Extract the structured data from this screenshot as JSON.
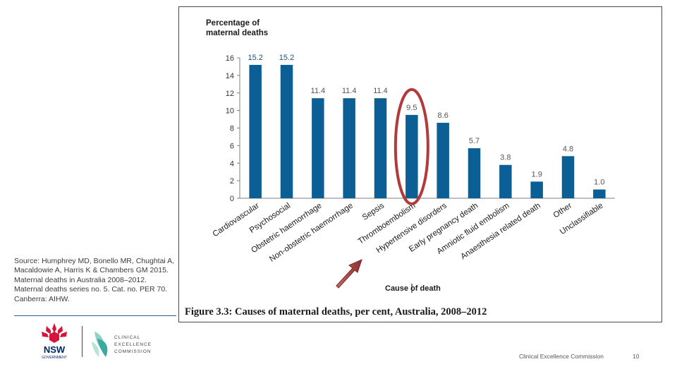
{
  "chart_data": {
    "type": "bar",
    "ylabel": "Percentage of\nmaternal deaths",
    "xlabel": "Cause of death",
    "ylim": [
      0,
      16
    ],
    "yticks": [
      "0",
      "2",
      "4",
      "6",
      "8",
      "10",
      "12",
      "14",
      "16"
    ],
    "categories": [
      "Cardiovascular",
      "Psychosocial",
      "Obstetric haemorrhage",
      "Non-obstetric haemorrhage",
      "Sepsis",
      "Thromboembolism",
      "Hypertensive disorders",
      "Early pregnancy death",
      "Amniotic fluid embolism",
      "Anaesthesia related death",
      "Other",
      "Unclassifiable"
    ],
    "values": [
      15.2,
      15.2,
      11.4,
      11.4,
      11.4,
      9.5,
      8.6,
      5.7,
      3.8,
      1.9,
      4.8,
      1.0
    ],
    "value_labels": [
      "15.2",
      "15.2",
      "11.4",
      "11.4",
      "11.4",
      "9.5",
      "8.6",
      "5.7",
      "3.8",
      "1.9",
      "4.8",
      "1.0"
    ],
    "highlighted_category": "Thromboembolism",
    "colors": {
      "bar": "#0b5f95",
      "highlight": "#b23a3a",
      "arrow": "#a33a3a"
    }
  },
  "figure_caption": "Figure 3.3: Causes of maternal deaths, per cent, Australia, 2008–2012",
  "source": "Source: Humphrey MD, Bonello MR, Chughtai A, Macaldowie A, Harris K & Chambers GM 2015. Maternal deaths in Australia 2008–2012. Maternal deaths series no. 5. Cat. no. PER 70. Canberra: AIHW.",
  "logos": {
    "nsw": {
      "title": "NSW",
      "subtitle": "GOVERNMENT"
    },
    "cec": {
      "line1": "CLINICAL",
      "line2": "EXCELLENCE",
      "line3": "COMMISSION"
    }
  },
  "footer": {
    "org": "Clinical Excellence Commission",
    "page": "10"
  }
}
